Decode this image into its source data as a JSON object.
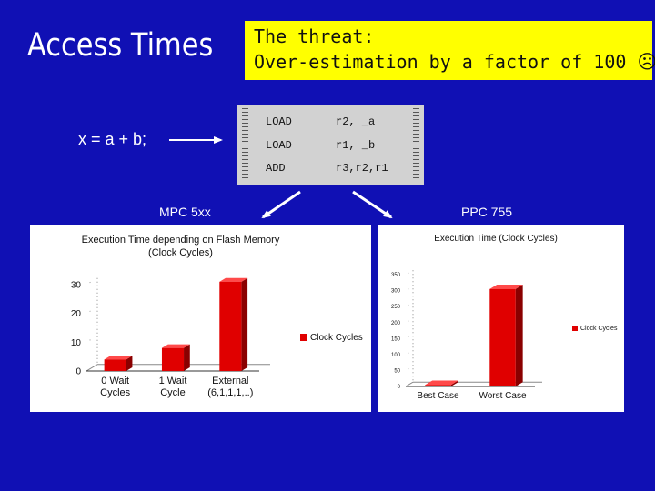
{
  "slide": {
    "title": "Access Times"
  },
  "callout": {
    "line1": "The threat:",
    "line2": "Over-estimation by a factor of 100",
    "emoji": "☹"
  },
  "source": {
    "expression": "x = a + b;"
  },
  "assembly": [
    {
      "op": "LOAD",
      "args": "r2, _a"
    },
    {
      "op": "LOAD",
      "args": "r1, _b"
    },
    {
      "op": "ADD",
      "args": "r3,r2,r1"
    }
  ],
  "processors": {
    "left": "MPC 5xx",
    "right": "PPC 755"
  },
  "colors": {
    "background": "#1010b4",
    "callout": "#ffff00",
    "bar": "#e00000"
  },
  "chart_data": [
    {
      "type": "bar",
      "title": "Execution Time depending on Flash Memory",
      "subtitle": "(Clock Cycles)",
      "categories": [
        [
          "0 Wait",
          "Cycles"
        ],
        [
          "1 Wait",
          "Cycle"
        ],
        [
          "External",
          "(6,1,1,1,..)"
        ]
      ],
      "series": [
        {
          "name": "Clock Cycles",
          "values": [
            4,
            8,
            31
          ]
        }
      ],
      "ylim": [
        0,
        30
      ],
      "yticks": [
        "0",
        "10",
        "20",
        "30"
      ],
      "grid": false,
      "legend": "right"
    },
    {
      "type": "bar",
      "title": "Execution Time (Clock Cycles)",
      "categories": [
        [
          "Best Case"
        ],
        [
          "Worst Case"
        ]
      ],
      "series": [
        {
          "name": "Clock Cycles",
          "values": [
            5,
            305
          ]
        }
      ],
      "ylim": [
        0,
        350
      ],
      "yticks": [
        "0",
        "50",
        "100",
        "150",
        "200",
        "250",
        "300",
        "350"
      ],
      "grid": false,
      "legend": "right"
    }
  ]
}
